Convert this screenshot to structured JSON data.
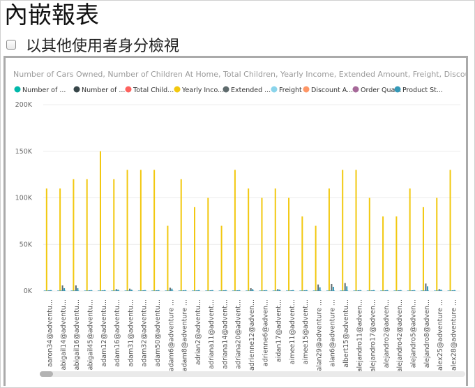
{
  "page": {
    "title": "內嵌報表",
    "view_as_label": "以其他使用者身分檢視"
  },
  "chart_data": {
    "type": "bar",
    "title": "Number of Cars Owned, Number of Children At Home, Total Children, Yearly Income, Extended Amount, Freight, Discount Am...",
    "legend_placement": "top-left",
    "legend": [
      {
        "label": "Number of ...",
        "color": "#01B8AA"
      },
      {
        "label": "Number of ...",
        "color": "#374649"
      },
      {
        "label": "Total Child...",
        "color": "#FD625E"
      },
      {
        "label": "Yearly Inco...",
        "color": "#F2C80F"
      },
      {
        "label": "Extended ...",
        "color": "#5F6B6D"
      },
      {
        "label": "Freight",
        "color": "#8AD4EB"
      },
      {
        "label": "Discount A...",
        "color": "#FE9666"
      },
      {
        "label": "Order Qua...",
        "color": "#A66999"
      },
      {
        "label": "Product St...",
        "color": "#3599B8"
      }
    ],
    "yticks": [
      "200K",
      "150K",
      "100K",
      "50K",
      "0K"
    ],
    "ylim": [
      0,
      200000
    ],
    "grid": true,
    "categories": [
      "aaron34@adventu...",
      "abigail14@adventu...",
      "abigail16@adventu...",
      "abigail45@adventu...",
      "adam12@adventu...",
      "adam16@adventu...",
      "adam31@adventu...",
      "adam32@adventu...",
      "adam50@adventu...",
      "adam6@adventure ...",
      "adam8@adventure ...",
      "adrian2@adventu...",
      "adriana11@advent...",
      "adriana14@advent...",
      "adriana20@advent...",
      "adrienne12@adven...",
      "adrienne6@adven...",
      "aidan17@advent...",
      "aimee11@advent...",
      "aimee15@advent...",
      "alan29@adventure ...",
      "alan6@adventure ...",
      "albert15@adventu...",
      "alejandro11@adven...",
      "alejandro17@adven...",
      "alejandro2@adven...",
      "alejandro42@adven...",
      "alejandro5@adven...",
      "alejandro8@adven...",
      "alex25@adventure ...",
      "alex28@adventure ..."
    ],
    "series": [
      {
        "name": "Yearly Inco...",
        "color": "#F2C80F",
        "values": [
          110000,
          110000,
          120000,
          120000,
          150000,
          120000,
          130000,
          130000,
          130000,
          70000,
          120000,
          90000,
          100000,
          70000,
          130000,
          110000,
          100000,
          110000,
          100000,
          80000,
          70000,
          110000,
          130000,
          130000,
          100000,
          80000,
          80000,
          110000,
          90000,
          100000,
          130000
        ]
      },
      {
        "name": "Extended ...",
        "color": "#5F6B6D",
        "values": [
          500,
          6000,
          6000,
          500,
          500,
          2000,
          2500,
          500,
          500,
          3500,
          500,
          500,
          500,
          500,
          500,
          3000,
          500,
          2000,
          500,
          500,
          7000,
          7500,
          8500,
          500,
          500,
          500,
          500,
          500,
          8000,
          2000,
          500
        ]
      },
      {
        "name": "Product St...",
        "color": "#3599B8",
        "values": [
          1000,
          3000,
          3000,
          1000,
          1000,
          1500,
          1500,
          1000,
          1000,
          2500,
          1000,
          1000,
          1000,
          1000,
          1000,
          2000,
          1000,
          1500,
          1000,
          1000,
          4000,
          4500,
          5000,
          1000,
          1000,
          1000,
          1000,
          1000,
          5000,
          1500,
          1000
        ]
      }
    ]
  }
}
